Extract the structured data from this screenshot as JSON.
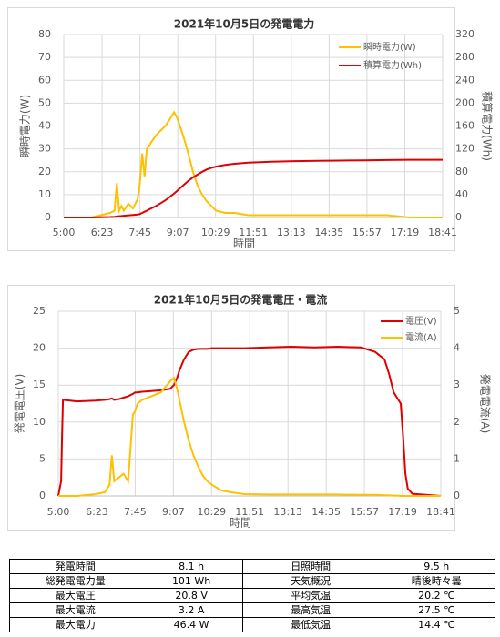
{
  "chart_data": [
    {
      "type": "line",
      "title": "2021年10月5日の発電電力",
      "xlabel": "時間",
      "ylabel": "瞬時電力(W)",
      "y2label": "積算電力(Wh)",
      "x": [
        300,
        360,
        380,
        400,
        410,
        415,
        420,
        425,
        430,
        440,
        450,
        460,
        465,
        470,
        475,
        480,
        490,
        500,
        510,
        520,
        530,
        539,
        545,
        550,
        560,
        570,
        580,
        590,
        600,
        610,
        620,
        630,
        650,
        670,
        700,
        750,
        800,
        850,
        900,
        950,
        1000,
        1050,
        1121
      ],
      "xlim": [
        300,
        1121
      ],
      "xticks": [
        {
          "value": 300,
          "label": "5:00"
        },
        {
          "value": 383,
          "label": "6:23"
        },
        {
          "value": 465,
          "label": "7:45"
        },
        {
          "value": 547,
          "label": "9:07"
        },
        {
          "value": 629,
          "label": "10:29"
        },
        {
          "value": 711,
          "label": "11:51"
        },
        {
          "value": 793,
          "label": "13:13"
        },
        {
          "value": 875,
          "label": "14:35"
        },
        {
          "value": 957,
          "label": "15:57"
        },
        {
          "value": 1039,
          "label": "17:19"
        },
        {
          "value": 1121,
          "label": "18:41"
        }
      ],
      "ylim": [
        0,
        80
      ],
      "yticks": [
        0,
        10,
        20,
        30,
        40,
        50,
        60,
        70,
        80
      ],
      "y2lim": [
        0,
        320
      ],
      "y2ticks": [
        0,
        40,
        80,
        120,
        160,
        200,
        240,
        280,
        320
      ],
      "grid": true,
      "legend": "upper right",
      "series": [
        {
          "name": "瞬時電力(W)",
          "color": "#ffc000",
          "values": [
            0,
            0,
            1,
            2,
            3,
            15,
            3,
            5,
            3,
            6,
            4,
            8,
            15,
            28,
            18,
            30,
            33,
            36,
            38,
            40,
            43,
            46,
            44,
            41,
            35,
            28,
            20,
            14,
            10,
            7,
            5,
            3,
            2,
            2,
            1,
            1,
            1,
            1,
            1,
            1,
            1,
            0,
            0
          ]
        },
        {
          "name": "積算電力(Wh)",
          "color": "#e00000",
          "axis": "y2",
          "values": [
            0,
            0,
            0.3,
            0.8,
            1.2,
            1.8,
            2.3,
            2.6,
            3,
            3.8,
            4.5,
            5.2,
            6,
            8,
            10,
            12,
            16,
            20,
            25,
            30,
            36,
            42,
            46,
            50,
            57,
            64,
            70,
            75,
            80,
            84,
            87,
            89,
            92,
            94,
            96,
            97.5,
            98.5,
            99,
            99.5,
            100,
            100.5,
            101,
            101
          ]
        }
      ]
    },
    {
      "type": "line",
      "title": "2021年10月5日の発電電圧・電流",
      "xlabel": "時間",
      "ylabel": "発電電圧(V)",
      "y2label": "発電電流(A)",
      "x": [
        300,
        303,
        306,
        308,
        310,
        340,
        380,
        400,
        410,
        415,
        420,
        430,
        440,
        450,
        460,
        465,
        470,
        480,
        500,
        520,
        540,
        548,
        555,
        560,
        570,
        580,
        590,
        600,
        610,
        620,
        630,
        650,
        670,
        700,
        750,
        800,
        850,
        900,
        950,
        980,
        1000,
        1010,
        1020,
        1025,
        1030,
        1035,
        1040,
        1045,
        1050,
        1060,
        1121
      ],
      "xlim": [
        300,
        1121
      ],
      "xticks": [
        {
          "value": 300,
          "label": "5:00"
        },
        {
          "value": 383,
          "label": "6:23"
        },
        {
          "value": 465,
          "label": "7:45"
        },
        {
          "value": 547,
          "label": "9:07"
        },
        {
          "value": 629,
          "label": "10:29"
        },
        {
          "value": 711,
          "label": "11:51"
        },
        {
          "value": 793,
          "label": "13:13"
        },
        {
          "value": 875,
          "label": "14:35"
        },
        {
          "value": 957,
          "label": "15:57"
        },
        {
          "value": 1039,
          "label": "17:19"
        },
        {
          "value": 1121,
          "label": "18:41"
        }
      ],
      "ylim": [
        0,
        25
      ],
      "yticks": [
        0,
        5,
        10,
        15,
        20,
        25
      ],
      "y2lim": [
        0,
        5
      ],
      "y2ticks": [
        0,
        1,
        2,
        3,
        4,
        5
      ],
      "grid": true,
      "legend": "upper right",
      "series": [
        {
          "name": "電圧(V)",
          "color": "#e00000",
          "values": [
            0,
            1,
            2,
            8,
            13,
            12.8,
            12.9,
            13,
            13.1,
            13.2,
            13,
            13.1,
            13.3,
            13.5,
            13.8,
            14,
            14,
            14.1,
            14.2,
            14.3,
            14.5,
            15,
            16,
            17,
            18.5,
            19.5,
            19.8,
            19.9,
            19.9,
            19.9,
            20,
            20,
            20,
            20,
            20.1,
            20.2,
            20.1,
            20.2,
            20.1,
            19.5,
            18.5,
            16.5,
            14,
            13.5,
            13,
            12.5,
            8,
            3,
            1,
            0.3,
            0
          ]
        },
        {
          "name": "電流(A)",
          "color": "#ffc000",
          "axis": "y2",
          "values": [
            0,
            0,
            0,
            0,
            0,
            0,
            0.05,
            0.1,
            0.3,
            1.1,
            0.4,
            0.5,
            0.6,
            0.4,
            2.2,
            2.3,
            2.5,
            2.6,
            2.7,
            2.8,
            3.1,
            3.2,
            2.9,
            2.6,
            2.0,
            1.5,
            1.1,
            0.8,
            0.55,
            0.4,
            0.3,
            0.15,
            0.1,
            0.05,
            0.04,
            0.04,
            0.04,
            0.04,
            0.03,
            0.03,
            0.02,
            0.02,
            0.01,
            0.01,
            0.01,
            0,
            0,
            0,
            0,
            0,
            0
          ]
        }
      ]
    }
  ],
  "table": {
    "rows": [
      [
        "発電時間",
        "8.1 h",
        "日照時間",
        "9.5 h"
      ],
      [
        "総発電電力量",
        "101 Wh",
        "天気概況",
        "晴後時々曇"
      ],
      [
        "最大電圧",
        "20.8 V",
        "平均気温",
        "20.2 ℃"
      ],
      [
        "最大電流",
        "3.2 A",
        "最高気温",
        "27.5 ℃"
      ],
      [
        "最大電力",
        "46.4 W",
        "最低気温",
        "14.4 ℃"
      ]
    ]
  }
}
